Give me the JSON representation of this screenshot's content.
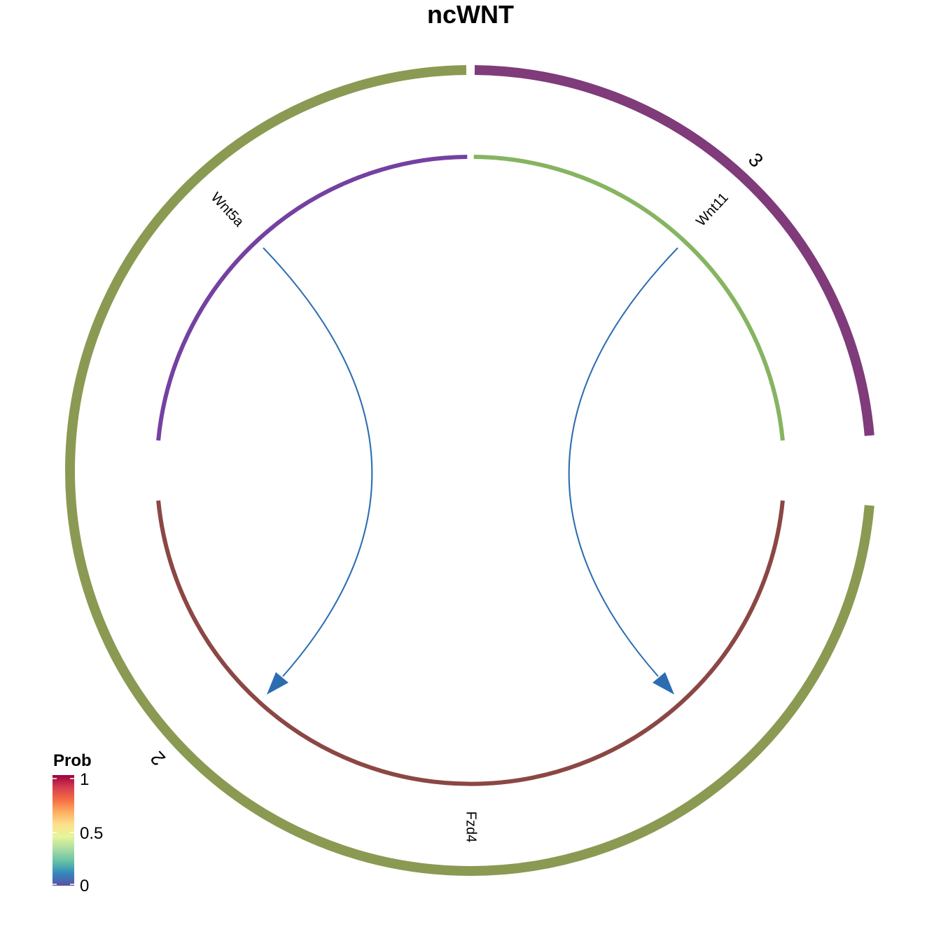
{
  "title": "ncWNT",
  "groups": [
    {
      "name": "3",
      "color": "#7f3b7a"
    },
    {
      "name": "2",
      "color": "#8a9a52"
    }
  ],
  "nodes": [
    {
      "name": "Wnt5a",
      "color": "#7441a1"
    },
    {
      "name": "Wnt11",
      "color": "#86b461"
    },
    {
      "name": "Fzd4",
      "color": "#8b4744"
    }
  ],
  "links": [
    {
      "source": "Wnt5a",
      "target": "Fzd4",
      "prob": 0.02,
      "color": "#2c6db2"
    },
    {
      "source": "Wnt11",
      "target": "Fzd4",
      "prob": 0.02,
      "color": "#2c6db2"
    }
  ],
  "legend": {
    "title": "Prob",
    "ticks": [
      "1",
      "0.5",
      "0"
    ],
    "colors": [
      "#9e0142",
      "#d53e4f",
      "#f46d43",
      "#fdae61",
      "#fee08b",
      "#e6f598",
      "#abdda4",
      "#66c2a5",
      "#3288bd",
      "#5e4fa2"
    ]
  }
}
